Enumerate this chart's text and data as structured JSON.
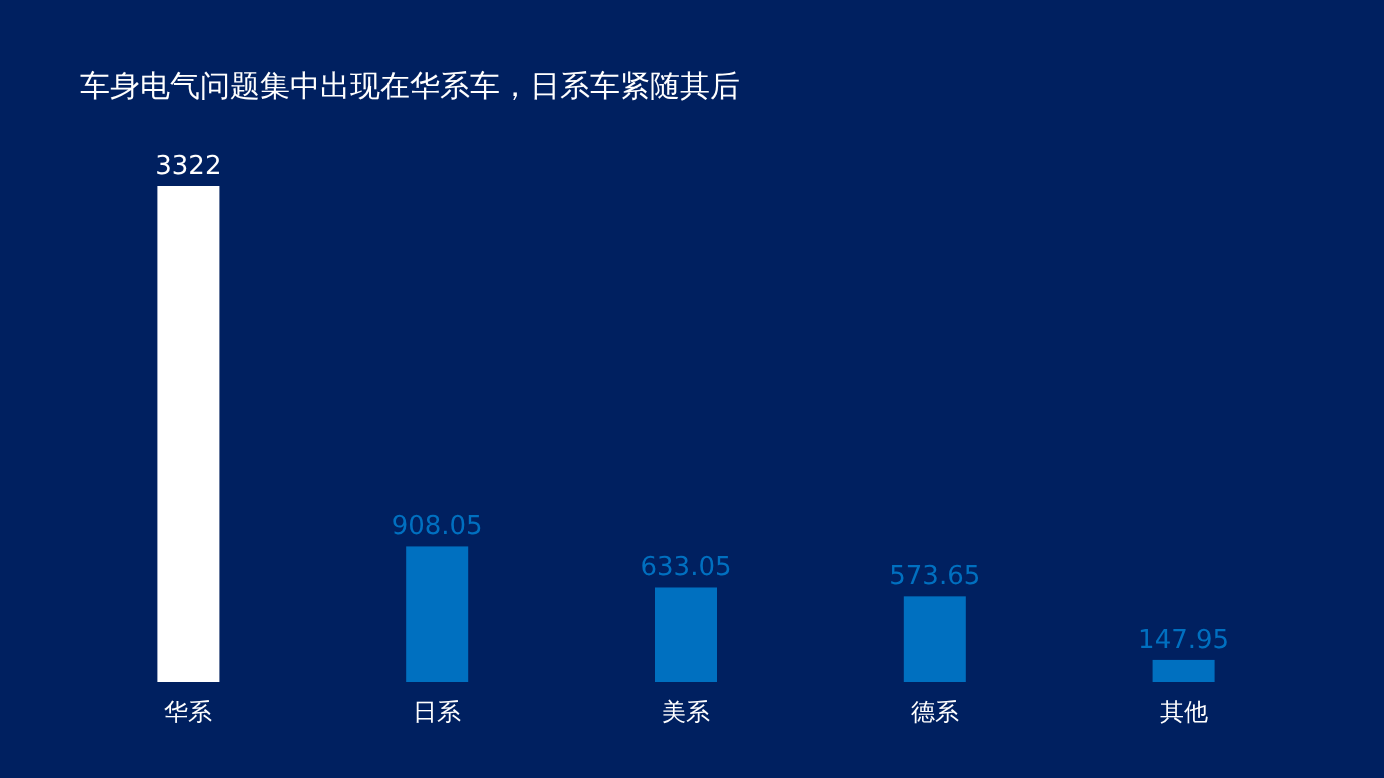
{
  "chart_data": {
    "type": "bar",
    "title": "车身电气问题集中出现在华系车，日系车紧随其后",
    "categories": [
      "华系",
      "日系",
      "美系",
      "德系",
      "其他"
    ],
    "values": [
      3322,
      908.05,
      633.05,
      573.65,
      147.95
    ],
    "colors": [
      "#ffffff",
      "#0070c0",
      "#0070c0",
      "#0070c0",
      "#0070c0"
    ],
    "data_labels": true
  }
}
